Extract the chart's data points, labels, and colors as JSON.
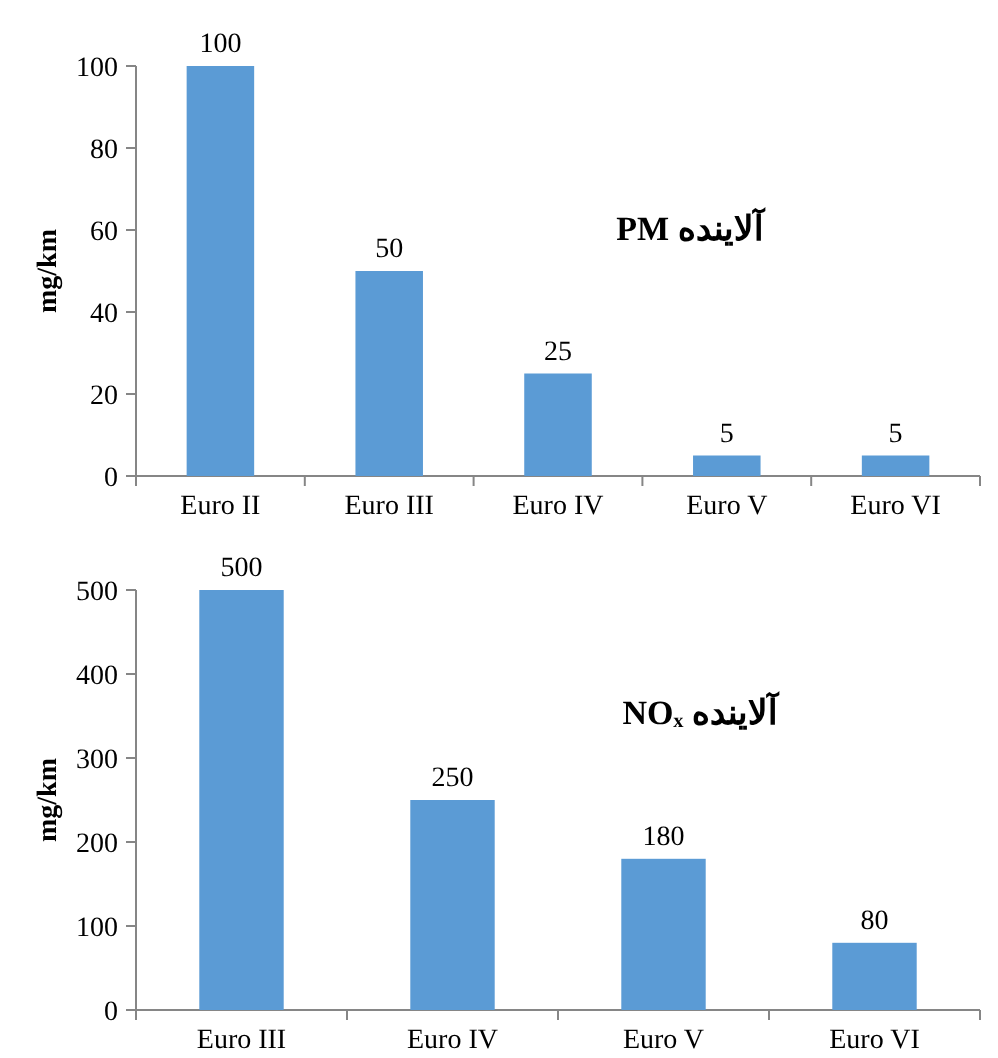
{
  "chart_data": [
    {
      "type": "bar",
      "title": "آلاینده PM",
      "ylabel": "mg/km",
      "categories": [
        "Euro II",
        "Euro III",
        "Euro IV",
        "Euro V",
        "Euro VI"
      ],
      "values": [
        100,
        50,
        25,
        5,
        5
      ],
      "color": "#5b9bd5",
      "ylim": [
        0,
        100
      ],
      "yticks": [
        0,
        20,
        40,
        60,
        80,
        100
      ],
      "data_labels": true
    },
    {
      "type": "bar",
      "title": "آلاینده NOₓ",
      "ylabel": "mg/km",
      "categories": [
        "Euro III",
        "Euro IV",
        "Euro V",
        "Euro VI"
      ],
      "values": [
        500,
        250,
        180,
        80
      ],
      "color": "#5b9bd5",
      "ylim": [
        0,
        500
      ],
      "yticks": [
        0,
        100,
        200,
        300,
        400,
        500
      ],
      "data_labels": true
    }
  ]
}
